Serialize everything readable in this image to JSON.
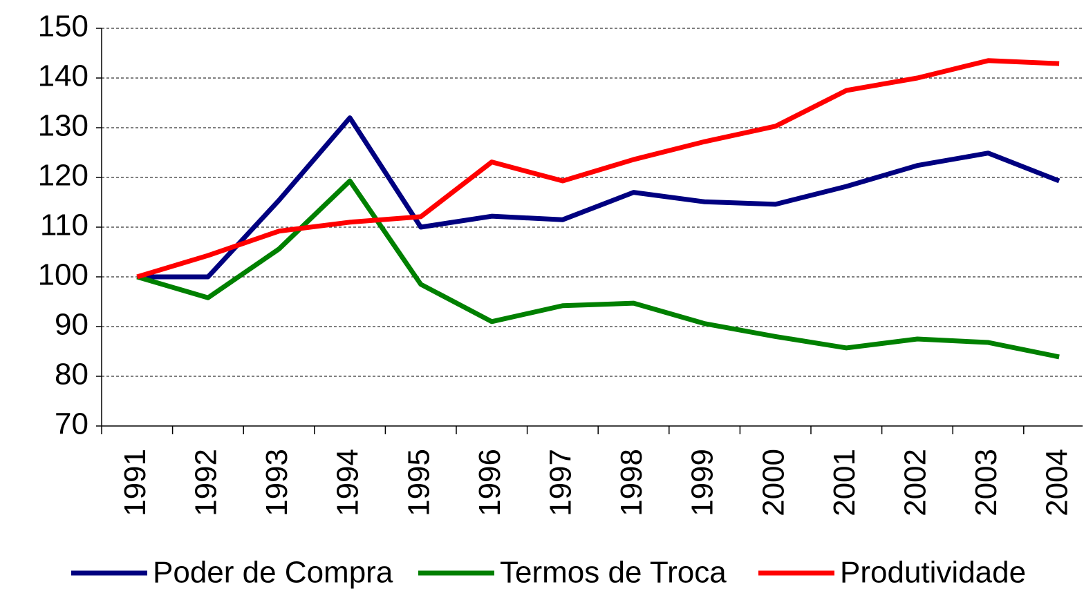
{
  "chart_data": {
    "type": "line",
    "categories": [
      "1991",
      "1992",
      "1993",
      "1994",
      "1995",
      "1996",
      "1997",
      "1998",
      "1999",
      "2000",
      "2001",
      "2002",
      "2003",
      "2004"
    ],
    "series": [
      {
        "name": "Poder de Compra",
        "color": "#000080",
        "values": [
          100,
          100,
          115.4,
          132,
          110,
          112.2,
          111.5,
          117,
          115.1,
          114.6,
          118.2,
          122.4,
          124.9,
          119.3
        ]
      },
      {
        "name": "Termos de Troca",
        "color": "#008000",
        "values": [
          100,
          95.8,
          105.6,
          119.3,
          98.5,
          91,
          94.2,
          94.7,
          90.6,
          88,
          85.7,
          87.5,
          86.8,
          83.9
        ]
      },
      {
        "name": "Produtividade",
        "color": "#ff0000",
        "values": [
          100,
          104.3,
          109.2,
          111,
          112.1,
          123.1,
          119.3,
          123.6,
          127.2,
          130.3,
          137.5,
          140,
          143.5,
          142.9
        ]
      }
    ],
    "ylim": [
      70,
      150
    ],
    "yticks": [
      70,
      80,
      90,
      100,
      110,
      120,
      130,
      140,
      150
    ],
    "grid": true,
    "legend": "bottom"
  }
}
